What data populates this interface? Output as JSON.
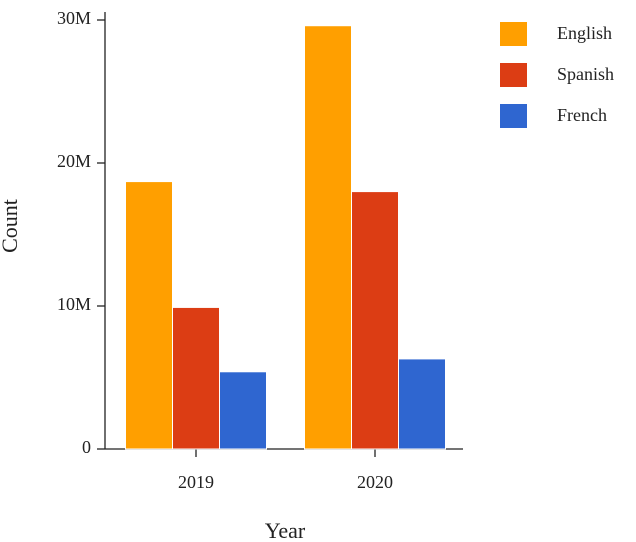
{
  "chart_data": {
    "type": "bar",
    "x_label": "Year",
    "y_label": "Count",
    "categories": [
      "2019",
      "2020"
    ],
    "series": [
      {
        "name": "English",
        "color": "#ff9f00",
        "values": [
          18700000,
          29600000
        ]
      },
      {
        "name": "Spanish",
        "color": "#dc3d14",
        "values": [
          9900000,
          18000000
        ]
      },
      {
        "name": "French",
        "color": "#2f66d0",
        "values": [
          5400000,
          6300000
        ]
      }
    ],
    "ylim": [
      0,
      30000000
    ],
    "yticks": [
      0,
      {
        "value": 10000000,
        "label": "10M"
      },
      {
        "value": 20000000,
        "label": "20M"
      },
      {
        "value": 30000000,
        "label": "30M"
      }
    ],
    "legend": "right",
    "grid": false
  }
}
